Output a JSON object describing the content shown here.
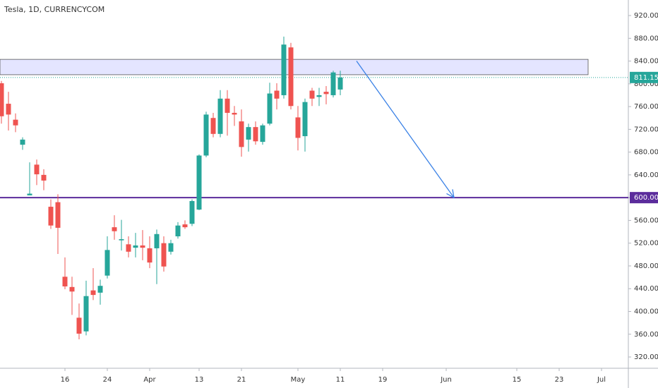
{
  "chart_data": {
    "type": "candlestick",
    "title": "Tesla, 1D, CURRENCYCOM",
    "x": [
      0,
      1,
      2,
      3,
      4,
      5,
      6,
      7,
      8,
      9,
      10,
      11,
      12,
      13,
      14,
      15,
      16,
      17,
      18,
      19,
      20,
      21,
      22,
      23,
      24,
      25,
      26,
      27,
      28,
      29,
      30,
      31,
      32,
      33,
      34,
      35,
      36,
      37,
      38,
      39,
      40,
      41,
      42,
      43,
      44,
      45,
      46,
      47,
      48
    ],
    "open": [
      801,
      765,
      737,
      693,
      604,
      658,
      640,
      584,
      592,
      461,
      443,
      389,
      365,
      437,
      433,
      463,
      548,
      525,
      518,
      512,
      516,
      511,
      511,
      520,
      505,
      532,
      553,
      554,
      579,
      674,
      740,
      712,
      774,
      749,
      734,
      702,
      724,
      698,
      730,
      788,
      780,
      864,
      741,
      708,
      788,
      777,
      786,
      780,
      790
    ],
    "high": [
      805,
      786,
      748,
      706,
      662,
      667,
      650,
      597,
      606,
      495,
      461,
      414,
      454,
      476,
      456,
      532,
      569,
      561,
      532,
      538,
      543,
      532,
      544,
      532,
      526,
      557,
      560,
      597,
      676,
      751,
      749,
      789,
      789,
      761,
      755,
      730,
      734,
      730,
      802,
      801,
      883,
      872,
      761,
      774,
      793,
      793,
      796,
      823,
      823
    ],
    "low": [
      730,
      718,
      715,
      684,
      604,
      622,
      613,
      545,
      501,
      439,
      394,
      351,
      358,
      420,
      412,
      458,
      526,
      507,
      495,
      495,
      490,
      476,
      448,
      470,
      500,
      528,
      545,
      550,
      578,
      671,
      706,
      706,
      709,
      726,
      672,
      681,
      693,
      693,
      727,
      755,
      774,
      755,
      683,
      681,
      761,
      761,
      764,
      776,
      780
    ],
    "close": [
      743,
      746,
      727,
      702,
      607,
      641,
      630,
      551,
      547,
      444,
      435,
      361,
      427,
      429,
      445,
      508,
      541,
      527,
      505,
      516,
      512,
      486,
      536,
      479,
      520,
      551,
      548,
      594,
      674,
      746,
      712,
      774,
      749,
      746,
      689,
      724,
      699,
      727,
      783,
      774,
      869,
      761,
      705,
      768,
      774,
      780,
      782,
      820,
      811.15
    ],
    "up_color": "#26a69a",
    "down_color": "#ef5350",
    "xlim": [
      -0.2,
      88.8
    ],
    "xticks": [
      {
        "value": 9,
        "label": "16"
      },
      {
        "value": 15,
        "label": "24"
      },
      {
        "value": 21,
        "label": "Apr"
      },
      {
        "value": 28,
        "label": "13"
      },
      {
        "value": 34,
        "label": "21"
      },
      {
        "value": 42,
        "label": "May"
      },
      {
        "value": 48,
        "label": "11"
      },
      {
        "value": 54,
        "label": "19"
      },
      {
        "value": 63,
        "label": "Jun"
      },
      {
        "value": 73,
        "label": "15"
      },
      {
        "value": 79,
        "label": "23"
      },
      {
        "value": 85,
        "label": "Jul"
      }
    ],
    "ylim": [
      300.2,
      947.3
    ],
    "yticks": [
      {
        "value": 320,
        "label": "320.00"
      },
      {
        "value": 360,
        "label": "360.00"
      },
      {
        "value": 400,
        "label": "400.00"
      },
      {
        "value": 440,
        "label": "440.00"
      },
      {
        "value": 480,
        "label": "480.00"
      },
      {
        "value": 520,
        "label": "520.00"
      },
      {
        "value": 560,
        "label": "560.00"
      },
      {
        "value": 600,
        "label": "600.00"
      },
      {
        "value": 640,
        "label": "640.00"
      },
      {
        "value": 680,
        "label": "680.00"
      },
      {
        "value": 720,
        "label": "720.00"
      },
      {
        "value": 760,
        "label": "760.00"
      },
      {
        "value": 800,
        "label": "800.00"
      },
      {
        "value": 840,
        "label": "840.00"
      },
      {
        "value": 880,
        "label": "880.00"
      },
      {
        "value": 920,
        "label": "920.00"
      }
    ],
    "zone": {
      "low": 816,
      "high": 843,
      "x_end": 83.1
    },
    "level": {
      "value": 600,
      "label": "600.00",
      "color": "#5b2c9c"
    },
    "last_price": {
      "value": 811.15,
      "color": "#26a69a"
    },
    "arrow": {
      "x": [
        50.3,
        64.1
      ],
      "y": [
        840,
        600
      ],
      "color": "#3b82e6"
    }
  }
}
